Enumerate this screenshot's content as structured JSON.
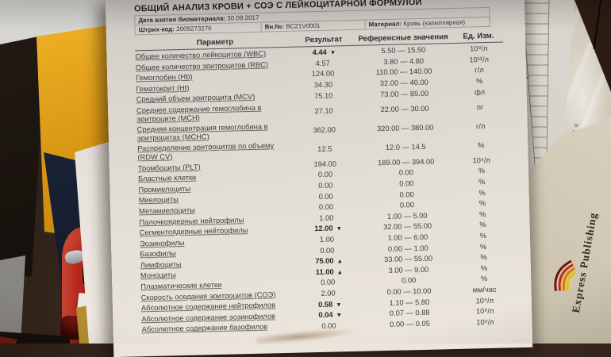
{
  "report": {
    "title": "ОБЩИЙ АНАЛИЗ КРОВИ + СОЭ С ЛЕЙКОЦИТАРНОЙ ФОРМУЛОЙ",
    "meta": {
      "date_label": "Дата взятия биоматериала:",
      "date_value": "30.09.2017",
      "barcode_label": "Штрих-код:",
      "barcode_value": "2009273276",
      "internal_no_label": "Вн.№:",
      "internal_no_value": "BC21V0001",
      "material_label": "Материал:",
      "material_value": "Кровь (капиллярная)"
    },
    "table": {
      "headers": [
        "Параметр",
        "Результат",
        "Референсные значения",
        "Ед. Изм."
      ],
      "rows": [
        {
          "param": "Общее количество лейкоцитов (WBC)",
          "result": "4.44",
          "flag": "▼",
          "ref": "5.50 — 15.50",
          "unit": "10⁹/л"
        },
        {
          "param": "Общее количество эритроцитов (RBC)",
          "result": "4.57",
          "flag": "",
          "ref": "3.80 — 4.80",
          "unit": "10¹²/л"
        },
        {
          "param": "Гемоглобин (Hb)",
          "result": "124.00",
          "flag": "",
          "ref": "110.00 — 140.00",
          "unit": "г/л"
        },
        {
          "param": "Гематокрит (Ht)",
          "result": "34.30",
          "flag": "",
          "ref": "32.00 — 40.00",
          "unit": "%"
        },
        {
          "param": "Средний объем эритроцита (MCV)",
          "result": "75.10",
          "flag": "",
          "ref": "73.00 — 85.00",
          "unit": "фл"
        },
        {
          "param": "Среднее содержание гемоглобина в эритроците (MCH)",
          "result": "27.10",
          "flag": "",
          "ref": "22.00 — 30.00",
          "unit": "пг"
        },
        {
          "param": "Средняя концентрация гемоглобина в эритроцитах (MCHC)",
          "result": "362.00",
          "flag": "",
          "ref": "320.00 — 380.00",
          "unit": "г/л"
        },
        {
          "param": "Распределение эритроцитов по объему (RDW CV)",
          "result": "12.5",
          "flag": "",
          "ref": "12.0 — 14.5",
          "unit": "%"
        },
        {
          "param": "Тромбоциты (PLT)",
          "result": "194.00",
          "flag": "",
          "ref": "189.00 — 394.00",
          "unit": "10⁹/л"
        },
        {
          "param": "Бластные клетки",
          "result": "0.00",
          "flag": "",
          "ref": "0.00",
          "unit": "%"
        },
        {
          "param": "Промиелоциты",
          "result": "0.00",
          "flag": "",
          "ref": "0.00",
          "unit": "%"
        },
        {
          "param": "Миелоциты",
          "result": "0.00",
          "flag": "",
          "ref": "0.00",
          "unit": "%"
        },
        {
          "param": "Метамиелоциты",
          "result": "0.00",
          "flag": "",
          "ref": "0.00",
          "unit": "%"
        },
        {
          "param": "Палочкоядерные нейтрофилы",
          "result": "1.00",
          "flag": "",
          "ref": "1.00 — 5.00",
          "unit": "%"
        },
        {
          "param": "Сегментоядерные нейтрофилы",
          "result": "12.00",
          "flag": "▼",
          "ref": "32.00 — 55.00",
          "unit": "%"
        },
        {
          "param": "Эозинофилы",
          "result": "1.00",
          "flag": "",
          "ref": "1.00 — 6.00",
          "unit": "%"
        },
        {
          "param": "Базофилы",
          "result": "0.00",
          "flag": "",
          "ref": "0.00 — 1.00",
          "unit": "%"
        },
        {
          "param": "Лимфоциты",
          "result": "75.00",
          "flag": "▲",
          "ref": "33.00 — 55.00",
          "unit": "%"
        },
        {
          "param": "Моноциты",
          "result": "11.00",
          "flag": "▲",
          "ref": "3.00 — 9.00",
          "unit": "%"
        },
        {
          "param": "Плазматические клетки",
          "result": "0.00",
          "flag": "",
          "ref": "0.00",
          "unit": "%"
        },
        {
          "param": "Скорость оседания эритроцитов (СОЭ)",
          "result": "2.00",
          "flag": "",
          "ref": "0.00 — 10.00",
          "unit": "мм/час"
        },
        {
          "param": "Абсолютное содержание нейтрофилов",
          "result": "0.58",
          "flag": "▼",
          "ref": "1.10 — 5.80",
          "unit": "10⁹/л"
        },
        {
          "param": "Абсолютное содержание эозинофилов",
          "result": "0.04",
          "flag": "▼",
          "ref": "0.07 — 0.88",
          "unit": "10⁹/л"
        },
        {
          "param": "Абсолютное содержание базофилов",
          "result": "0.00",
          "flag": "",
          "ref": "0.00 — 0.05",
          "unit": "10⁹/л"
        }
      ]
    }
  },
  "surroundings": {
    "german_fragment": "icht,",
    "publisher_name": "Express Publishing",
    "publisher_vertical": "PUBLISHING"
  },
  "colors": {
    "paper": "#e3ded6",
    "flag_dark": "#262522",
    "folder_yellow": "#d89612",
    "car_red": "#b3261b",
    "magazine_blue": "#151b2b",
    "wood_brown": "#322117",
    "metal_grey": "#8f8d88"
  }
}
